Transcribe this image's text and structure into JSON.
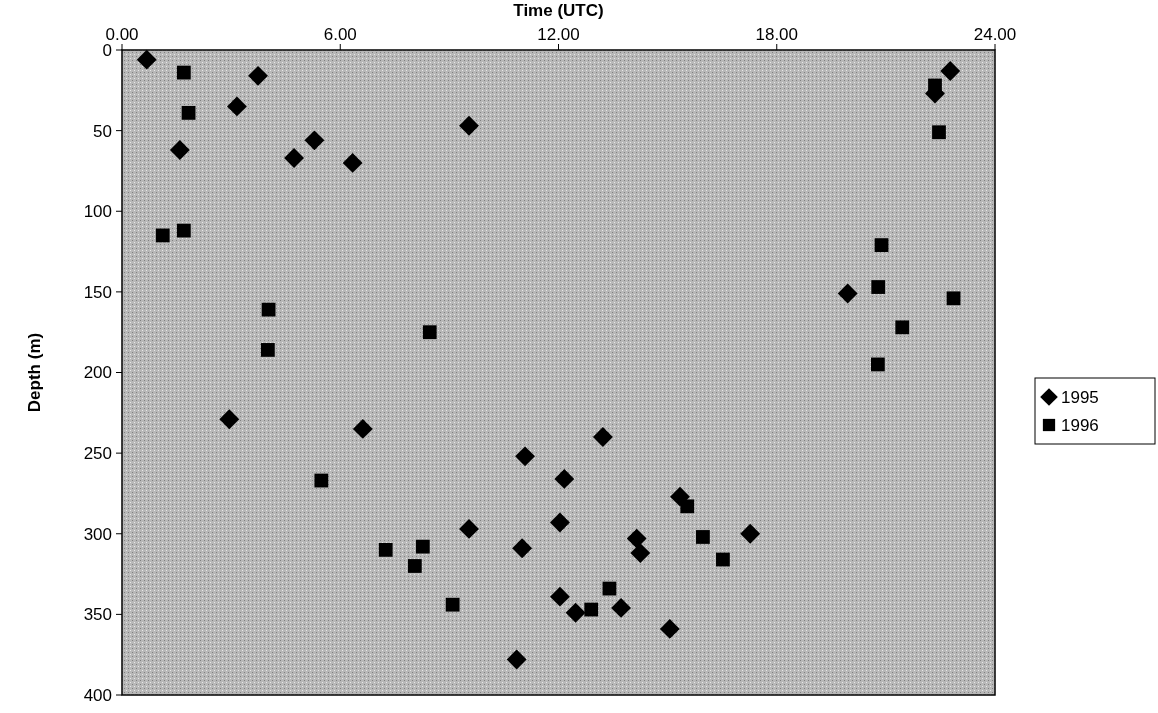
{
  "chart_data": {
    "type": "scatter",
    "xlabel": "Time (UTC)",
    "ylabel": "Depth (m)",
    "xlim": [
      0,
      24
    ],
    "xticks": [
      {
        "value": 0,
        "label": "0.00"
      },
      {
        "value": 6,
        "label": "6.00"
      },
      {
        "value": 12,
        "label": "12.00"
      },
      {
        "value": 18,
        "label": "18.00"
      },
      {
        "value": 24,
        "label": "24.00"
      }
    ],
    "ylim": [
      400,
      0
    ],
    "yticks": [
      0,
      50,
      100,
      150,
      200,
      250,
      300,
      350,
      400
    ],
    "grid": false,
    "legend": "right",
    "series": [
      {
        "name": "1995",
        "color": "#000000",
        "marker": "diamond",
        "x": [
          0.68,
          3.74,
          3.16,
          1.59,
          5.29,
          4.73,
          6.34,
          9.54,
          2.95,
          6.62,
          11.08,
          12.16,
          9.54,
          12.04,
          11.0,
          12.04,
          10.85,
          13.22,
          15.34,
          14.15,
          14.25,
          17.27,
          12.47,
          13.72,
          15.06,
          22.77,
          22.35,
          19.95
        ],
        "values": [
          6,
          16,
          35,
          62,
          56,
          67,
          70,
          47,
          229,
          235,
          252,
          266,
          297,
          293,
          309,
          339,
          378,
          240,
          277,
          303,
          312,
          300,
          349,
          346,
          359,
          13,
          27,
          151
        ]
      },
      {
        "name": "1996",
        "color": "#000000",
        "marker": "square",
        "x": [
          1.7,
          1.83,
          1.12,
          1.7,
          4.03,
          4.01,
          8.46,
          5.48,
          7.25,
          8.27,
          8.05,
          9.09,
          15.54,
          15.97,
          16.52,
          13.4,
          12.9,
          21.45,
          20.78,
          22.35,
          22.46,
          20.88,
          20.79,
          22.86
        ],
        "values": [
          14,
          39,
          115,
          112,
          161,
          186,
          175,
          267,
          310,
          308,
          320,
          344,
          283,
          302,
          316,
          334,
          347,
          172,
          195,
          22,
          51,
          121,
          147,
          154
        ]
      }
    ]
  }
}
